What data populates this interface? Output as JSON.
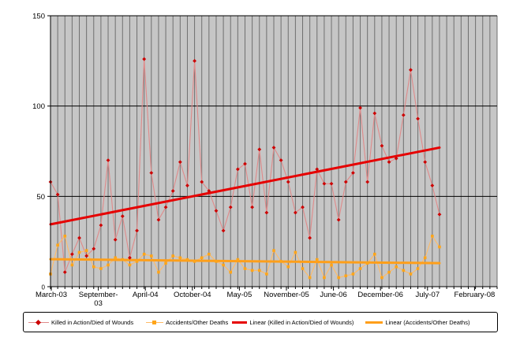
{
  "chart_data": {
    "type": "line",
    "title": "",
    "months": [
      "Mar-03",
      "Apr-03",
      "May-03",
      "Jun-03",
      "Jul-03",
      "Aug-03",
      "Sep-03",
      "Oct-03",
      "Nov-03",
      "Dec-03",
      "Jan-04",
      "Feb-04",
      "Mar-04",
      "Apr-04",
      "May-04",
      "Jun-04",
      "Jul-04",
      "Aug-04",
      "Sep-04",
      "Oct-04",
      "Nov-04",
      "Dec-04",
      "Jan-05",
      "Feb-05",
      "Mar-05",
      "Apr-05",
      "May-05",
      "Jun-05",
      "Jul-05",
      "Aug-05",
      "Sep-05",
      "Oct-05",
      "Nov-05",
      "Dec-05",
      "Jan-06",
      "Feb-06",
      "Mar-06",
      "Apr-06",
      "May-06",
      "Jun-06",
      "Jul-06",
      "Aug-06",
      "Sep-06",
      "Oct-06",
      "Nov-06",
      "Dec-06",
      "Jan-07",
      "Feb-07",
      "Mar-07",
      "Apr-07",
      "May-07",
      "Jun-07",
      "Jul-07",
      "Aug-07",
      "Sep-07"
    ],
    "series": [
      {
        "name": "Killed in Action/Died of Wounds",
        "marker": "diamond",
        "marker_color": "#cc0000",
        "line_color": "#e08a8a",
        "values": [
          58,
          51,
          8,
          18,
          27,
          17,
          21,
          34,
          70,
          26,
          39,
          16,
          31,
          126,
          63,
          37,
          44,
          53,
          69,
          56,
          125,
          58,
          53,
          42,
          31,
          44,
          65,
          68,
          44,
          76,
          41,
          77,
          70,
          58,
          41,
          44,
          27,
          65,
          57,
          57,
          37,
          58,
          63,
          99,
          58,
          96,
          78,
          69,
          71,
          95,
          120,
          93,
          69,
          56,
          40
        ]
      },
      {
        "name": "Accidents/Other Deaths",
        "marker": "square",
        "marker_color": "#ffa519",
        "line_color": "#ffbb66",
        "values": [
          7,
          23,
          28,
          12,
          19,
          20,
          11,
          10,
          12,
          16,
          15,
          12,
          14,
          18,
          17,
          8,
          13,
          17,
          16,
          15,
          14,
          16,
          18,
          14,
          12,
          8,
          15,
          10,
          9,
          9,
          7,
          20,
          14,
          11,
          19,
          10,
          5,
          15,
          5,
          12,
          5,
          6,
          7,
          10,
          13,
          18,
          5,
          8,
          11,
          9,
          7,
          10,
          16,
          28,
          22
        ]
      }
    ],
    "trendlines": [
      {
        "name": "Linear (Killed in Action/Died of Wounds)",
        "color": "#e60000",
        "start_value": 34.5,
        "end_value": 77
      },
      {
        "name": "Linear (Accidents/Other Deaths)",
        "color": "#ff9f1a",
        "start_value": 15.2,
        "end_value": 13
      }
    ],
    "x_axis_labels": [
      "March-03",
      "September-\n03",
      "April-04",
      "October-04",
      "May-05",
      "November-05",
      "June-06",
      "December-06",
      "July-07",
      "February-08"
    ],
    "y_ticks": [
      0,
      50,
      100,
      150
    ],
    "ylim": [
      0,
      150
    ],
    "axis_months_total": 62,
    "grid": "vertical-monthly plus horizontal at 50/100",
    "legend_position": "bottom",
    "plot_bg": "#c6c6c6",
    "gridline_color": "#6f6f6f",
    "axis_color": "#000000"
  },
  "legend": {
    "items": [
      {
        "label": "Killed in Action/Died of Wounds"
      },
      {
        "label": "Accidents/Other Deaths"
      },
      {
        "label": "Linear (Killed in Action/Died of Wounds)"
      },
      {
        "label": "Linear (Accidents/Other Deaths)"
      }
    ]
  }
}
